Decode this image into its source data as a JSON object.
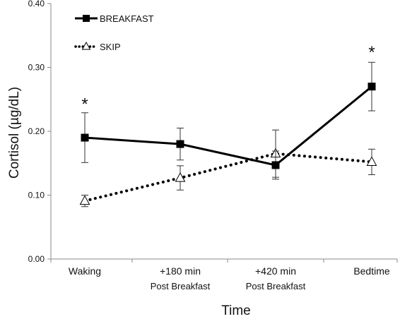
{
  "chart_data": {
    "type": "line",
    "title": "",
    "xlabel": "Time",
    "ylabel": "Cortisol (µg/dL)",
    "ylim": [
      0,
      0.4
    ],
    "yticks": [
      "0.00",
      "0.10",
      "0.20",
      "0.30",
      "0.40"
    ],
    "categories": [
      {
        "line1": "Waking",
        "line2": ""
      },
      {
        "line1": "+180 min",
        "line2": "Post Breakfast"
      },
      {
        "line1": "+420 min",
        "line2": "Post Breakfast"
      },
      {
        "line1": "Bedtime",
        "line2": ""
      }
    ],
    "legend_position": "top-left",
    "grid": false,
    "series": [
      {
        "name": "BREAKFAST",
        "marker": "filled-square",
        "line_style": "solid",
        "color": "#000000",
        "values": [
          0.19,
          0.18,
          0.147,
          0.27
        ],
        "error": [
          0.039,
          0.025,
          0.022,
          0.038
        ]
      },
      {
        "name": "SKIP",
        "marker": "open-triangle",
        "line_style": "dotted",
        "color": "#000000",
        "values": [
          0.091,
          0.127,
          0.165,
          0.152
        ],
        "error": [
          0.009,
          0.019,
          0.037,
          0.02
        ]
      }
    ],
    "annotations": [
      {
        "text": "*",
        "category_index": 0,
        "y": 0.245
      },
      {
        "text": "*",
        "category_index": 3,
        "y": 0.326
      }
    ]
  }
}
